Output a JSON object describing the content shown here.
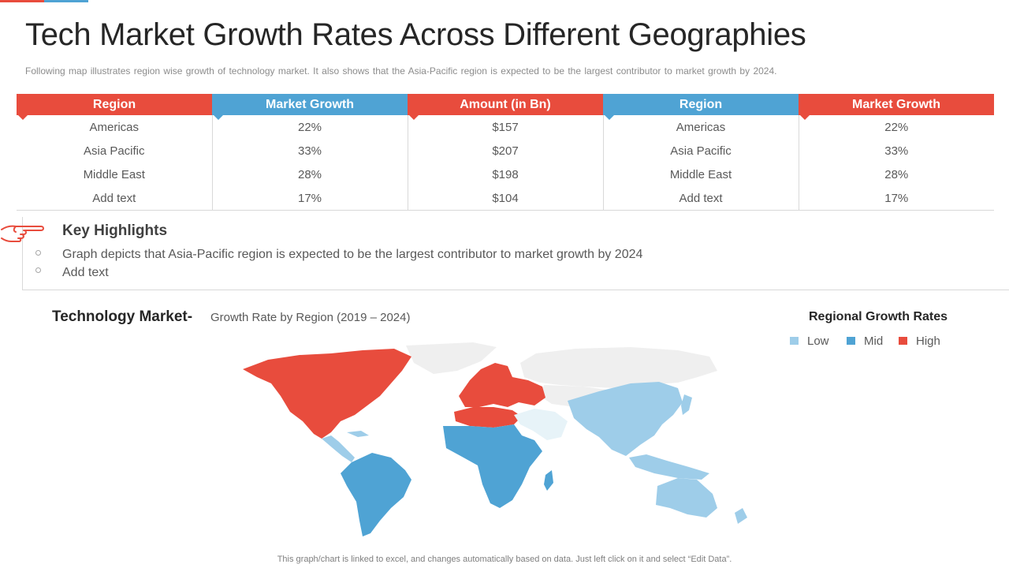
{
  "title": "Tech Market Growth Rates Across Different Geographies",
  "subtitle": "Following map illustrates region wise growth of technology market. It also shows that the Asia-Pacific region is expected to be the largest contributor to market growth by 2024.",
  "table": {
    "headers": [
      "Region",
      "Market Growth",
      "Amount (in Bn)",
      "Region",
      "Market Growth"
    ],
    "rows": [
      [
        "Americas",
        "22%",
        "$157",
        "Americas",
        "22%"
      ],
      [
        "Asia Pacific",
        "33%",
        "$207",
        "Asia Pacific",
        "33%"
      ],
      [
        "Middle East",
        "28%",
        "$198",
        "Middle East",
        "28%"
      ],
      [
        "Add text",
        "17%",
        "$104",
        "Add text",
        "17%"
      ]
    ]
  },
  "highlights": {
    "title": "Key Highlights",
    "items": [
      "Graph depicts that Asia-Pacific region is expected to be the largest contributor  to market growth by 2024",
      "Add text"
    ]
  },
  "map": {
    "title": "Technology Market-",
    "subtitle": "Growth Rate by Region (2019 – 2024)",
    "legend_title": "Regional Growth Rates",
    "legend": [
      {
        "label": "Low",
        "color": "#9ecde9"
      },
      {
        "label": "Mid",
        "color": "#4fa3d4"
      },
      {
        "label": "High",
        "color": "#e84c3d"
      }
    ]
  },
  "footnote": "This graph/chart is linked to excel,  and changes automatically based on data. Just left click on it and select “Edit Data”.",
  "colors": {
    "accent_red": "#e84c3d",
    "accent_blue": "#4fa3d4",
    "no_data": "#efefef"
  }
}
